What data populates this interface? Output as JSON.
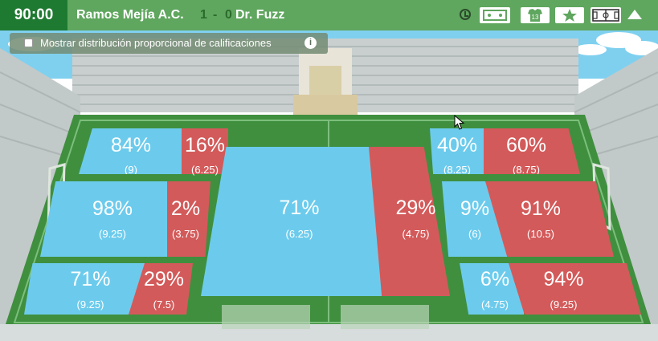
{
  "header": {
    "clock": "90:00",
    "home_team": "Ramos Mejía A.C.",
    "score_home": "1",
    "score_separator": "-",
    "score_away": "0",
    "away_team": "Dr. Fuzz",
    "icons": [
      "clock-icon",
      "tactics-icon",
      "shirt-icon",
      "star-icon",
      "pitch-icon",
      "collapse-icon"
    ],
    "shirt_number": "13"
  },
  "toggle": {
    "label": "Mostrar distribución proporcional de calificaciones",
    "checked": false
  },
  "colors": {
    "home": "#6ccbec",
    "away": "#d35a5a",
    "pitch": "#3f8f3f",
    "header": "#5fa65f",
    "clock_bg": "#1e7a31"
  },
  "zones": {
    "left_top": {
      "home_pct": "84%",
      "home_rating": "(9)",
      "away_pct": "16%",
      "away_rating": "(6.25)"
    },
    "left_middle": {
      "home_pct": "98%",
      "home_rating": "(9.25)",
      "away_pct": "2%",
      "away_rating": "(3.75)"
    },
    "left_bottom": {
      "home_pct": "71%",
      "home_rating": "(9.25)",
      "away_pct": "29%",
      "away_rating": "(7.5)"
    },
    "center": {
      "home_pct": "71%",
      "home_rating": "(6.25)",
      "away_pct": "29%",
      "away_rating": "(4.75)"
    },
    "right_top": {
      "home_pct": "40%",
      "home_rating": "(8.25)",
      "away_pct": "60%",
      "away_rating": "(8.75)"
    },
    "right_middle": {
      "home_pct": "9%",
      "home_rating": "(6)",
      "away_pct": "91%",
      "away_rating": "(10.5)"
    },
    "right_bottom": {
      "home_pct": "6%",
      "home_rating": "(4.75)",
      "away_pct": "94%",
      "away_rating": "(9.25)"
    }
  }
}
